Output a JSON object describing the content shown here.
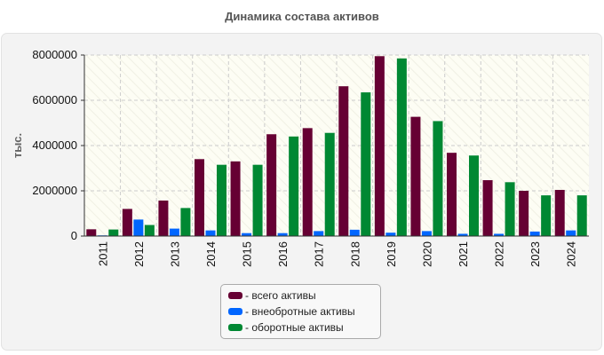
{
  "header": {
    "title": "Динамика состава активов"
  },
  "colors": {
    "series": [
      "#660033",
      "#0066ff",
      "#008833"
    ]
  },
  "chart_data": {
    "type": "bar",
    "title": "Динамика состава активов",
    "xlabel": "",
    "ylabel": "тыс.",
    "ylim": [
      0,
      8000000
    ],
    "yticks": [
      "0",
      "2000000",
      "4000000",
      "6000000",
      "8000000"
    ],
    "categories": [
      "2011",
      "2012",
      "2013",
      "2014",
      "2015",
      "2016",
      "2017",
      "2018",
      "2019",
      "2020",
      "2021",
      "2022",
      "2023",
      "2024"
    ],
    "series": [
      {
        "name": "- всего активы",
        "values": [
          300000,
          1200000,
          1570000,
          3400000,
          3300000,
          4500000,
          4770000,
          6620000,
          7950000,
          5270000,
          3680000,
          2470000,
          2000000,
          2040000
        ]
      },
      {
        "name": "- внеобротные активы",
        "values": [
          30000,
          730000,
          330000,
          250000,
          130000,
          130000,
          220000,
          280000,
          150000,
          220000,
          100000,
          100000,
          200000,
          250000
        ]
      },
      {
        "name": "- оборотные активы",
        "values": [
          290000,
          490000,
          1240000,
          3150000,
          3150000,
          4400000,
          4560000,
          6350000,
          7850000,
          5080000,
          3560000,
          2380000,
          1800000,
          1800000
        ]
      }
    ],
    "grid": true,
    "legend": "bottom"
  }
}
